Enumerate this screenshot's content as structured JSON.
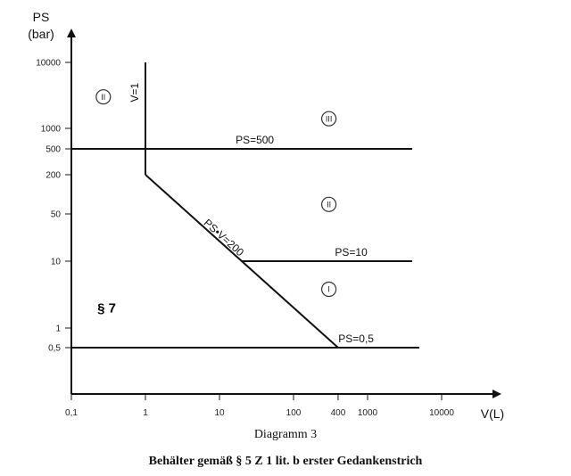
{
  "chart_data": {
    "type": "line",
    "xlabel": "V(L)",
    "ylabel_line1": "PS",
    "ylabel_line2": "(bar)",
    "x_scale": "log",
    "y_scale": "log",
    "xlim": [
      0.1,
      10000
    ],
    "ylim": [
      0.1,
      10000
    ],
    "x_ticks": [
      {
        "value": 0.1,
        "label": "0,1"
      },
      {
        "value": 1,
        "label": "1"
      },
      {
        "value": 10,
        "label": "10"
      },
      {
        "value": 100,
        "label": "100"
      },
      {
        "value": 400,
        "label": "400"
      },
      {
        "value": 1000,
        "label": "1000"
      },
      {
        "value": 10000,
        "label": "10000"
      }
    ],
    "y_ticks": [
      {
        "value": 0.5,
        "label": "0,5"
      },
      {
        "value": 1,
        "label": "1"
      },
      {
        "value": 10,
        "label": "10"
      },
      {
        "value": 50,
        "label": "50"
      },
      {
        "value": 200,
        "label": "200"
      },
      {
        "value": 500,
        "label": "500"
      },
      {
        "value": 1000,
        "label": "1000"
      },
      {
        "value": 10000,
        "label": "10000"
      }
    ],
    "series": [
      {
        "name": "V=1",
        "x": [
          1,
          1
        ],
        "y": [
          200,
          10000
        ]
      },
      {
        "name": "PS=500",
        "x": [
          0.1,
          4000
        ],
        "y": [
          500,
          500
        ]
      },
      {
        "name": "PS•V=200",
        "x": [
          1,
          400
        ],
        "y": [
          200,
          0.5
        ]
      },
      {
        "name": "PS=10",
        "x": [
          20,
          4000
        ],
        "y": [
          10,
          10
        ]
      },
      {
        "name": "PS=0,5",
        "x": [
          0.1,
          5000
        ],
        "y": [
          0.5,
          0.5
        ]
      }
    ],
    "region_labels": [
      {
        "label": "II",
        "x": 0.27,
        "y": 3000
      },
      {
        "label": "III",
        "x": 300,
        "y": 1400
      },
      {
        "label": "II",
        "x": 300,
        "y": 70
      },
      {
        "label": "I",
        "x": 300,
        "y": 3.8
      }
    ],
    "annotation": {
      "label": "§ 7",
      "x": 0.3,
      "y": 2
    }
  },
  "caption": "Diagramm 3",
  "caption_title": "Behälter gemäß § 5 Z 1 lit. b erster Gedankenstrich"
}
